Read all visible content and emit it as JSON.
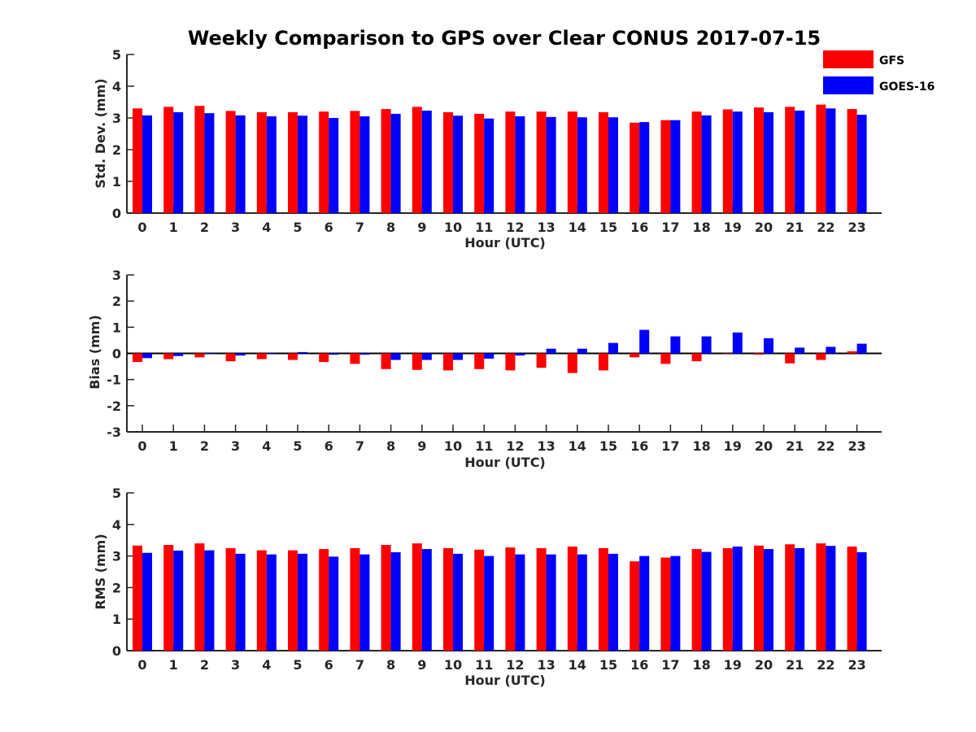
{
  "title": "Weekly Comparison to GPS over Clear CONUS 2017-07-15",
  "colors": {
    "gfs": "#ff0000",
    "goes": "#0000ff",
    "axis": "#262626"
  },
  "legend": [
    {
      "name": "GFS",
      "color": "#ff0000"
    },
    {
      "name": "GOES-16",
      "color": "#0000ff"
    }
  ],
  "chart_data": [
    {
      "type": "bar",
      "id": "stddev",
      "xlabel": "Hour (UTC)",
      "ylabel": "Std. Dev. (mm)",
      "ylim": [
        0,
        5
      ],
      "yticks": [
        0,
        1,
        2,
        3,
        4,
        5
      ],
      "ytick_labels": [
        "0",
        "1",
        "2",
        "3",
        "4",
        "5"
      ],
      "categories": [
        "0",
        "1",
        "2",
        "3",
        "4",
        "5",
        "6",
        "7",
        "8",
        "9",
        "10",
        "11",
        "12",
        "13",
        "14",
        "15",
        "16",
        "17",
        "18",
        "19",
        "20",
        "21",
        "22",
        "23"
      ],
      "series": [
        {
          "name": "GFS",
          "values": [
            3.3,
            3.35,
            3.38,
            3.22,
            3.18,
            3.18,
            3.2,
            3.22,
            3.28,
            3.35,
            3.18,
            3.13,
            3.2,
            3.2,
            3.2,
            3.18,
            2.85,
            2.93,
            3.2,
            3.27,
            3.33,
            3.35,
            3.42,
            3.28
          ]
        },
        {
          "name": "GOES-16",
          "values": [
            3.08,
            3.18,
            3.15,
            3.08,
            3.05,
            3.07,
            3.0,
            3.05,
            3.13,
            3.23,
            3.07,
            2.98,
            3.05,
            3.03,
            3.02,
            3.02,
            2.87,
            2.93,
            3.08,
            3.2,
            3.18,
            3.23,
            3.3,
            3.1
          ]
        }
      ]
    },
    {
      "type": "bar",
      "id": "bias",
      "xlabel": "Hour (UTC)",
      "ylabel": "Bias (mm)",
      "ylim": [
        -3,
        3
      ],
      "yticks": [
        -3,
        -2,
        -1,
        0,
        1,
        2,
        3
      ],
      "ytick_labels": [
        "-3",
        "-2",
        "-1",
        "0",
        "1",
        "2",
        "3"
      ],
      "categories": [
        "0",
        "1",
        "2",
        "3",
        "4",
        "5",
        "6",
        "7",
        "8",
        "9",
        "10",
        "11",
        "12",
        "13",
        "14",
        "15",
        "16",
        "17",
        "18",
        "19",
        "20",
        "21",
        "22",
        "23"
      ],
      "series": [
        {
          "name": "GFS",
          "values": [
            -0.33,
            -0.22,
            -0.15,
            -0.3,
            -0.22,
            -0.25,
            -0.33,
            -0.4,
            -0.6,
            -0.63,
            -0.65,
            -0.6,
            -0.65,
            -0.55,
            -0.75,
            -0.65,
            -0.15,
            -0.4,
            -0.3,
            0.0,
            -0.05,
            -0.38,
            -0.25,
            0.08
          ]
        },
        {
          "name": "GOES-16",
          "values": [
            -0.18,
            -0.1,
            -0.02,
            -0.08,
            0.02,
            0.05,
            -0.05,
            -0.05,
            -0.25,
            -0.25,
            -0.25,
            -0.2,
            -0.08,
            0.18,
            0.18,
            0.4,
            0.9,
            0.65,
            0.65,
            0.8,
            0.58,
            0.22,
            0.25,
            0.37
          ]
        }
      ]
    },
    {
      "type": "bar",
      "id": "rms",
      "xlabel": "Hour (UTC)",
      "ylabel": "RMS (mm)",
      "ylim": [
        0,
        5
      ],
      "yticks": [
        0,
        1,
        2,
        3,
        4,
        5
      ],
      "ytick_labels": [
        "0",
        "1",
        "2",
        "3",
        "4",
        "5"
      ],
      "categories": [
        "0",
        "1",
        "2",
        "3",
        "4",
        "5",
        "6",
        "7",
        "8",
        "9",
        "10",
        "11",
        "12",
        "13",
        "14",
        "15",
        "16",
        "17",
        "18",
        "19",
        "20",
        "21",
        "22",
        "23"
      ],
      "series": [
        {
          "name": "GFS",
          "values": [
            3.33,
            3.35,
            3.4,
            3.25,
            3.18,
            3.18,
            3.22,
            3.25,
            3.35,
            3.4,
            3.25,
            3.2,
            3.27,
            3.25,
            3.3,
            3.25,
            2.83,
            2.95,
            3.22,
            3.25,
            3.33,
            3.37,
            3.4,
            3.3
          ]
        },
        {
          "name": "GOES-16",
          "values": [
            3.1,
            3.17,
            3.18,
            3.07,
            3.05,
            3.07,
            2.98,
            3.05,
            3.12,
            3.22,
            3.07,
            3.0,
            3.05,
            3.05,
            3.05,
            3.07,
            3.0,
            3.0,
            3.13,
            3.3,
            3.22,
            3.25,
            3.32,
            3.12
          ]
        }
      ]
    }
  ]
}
